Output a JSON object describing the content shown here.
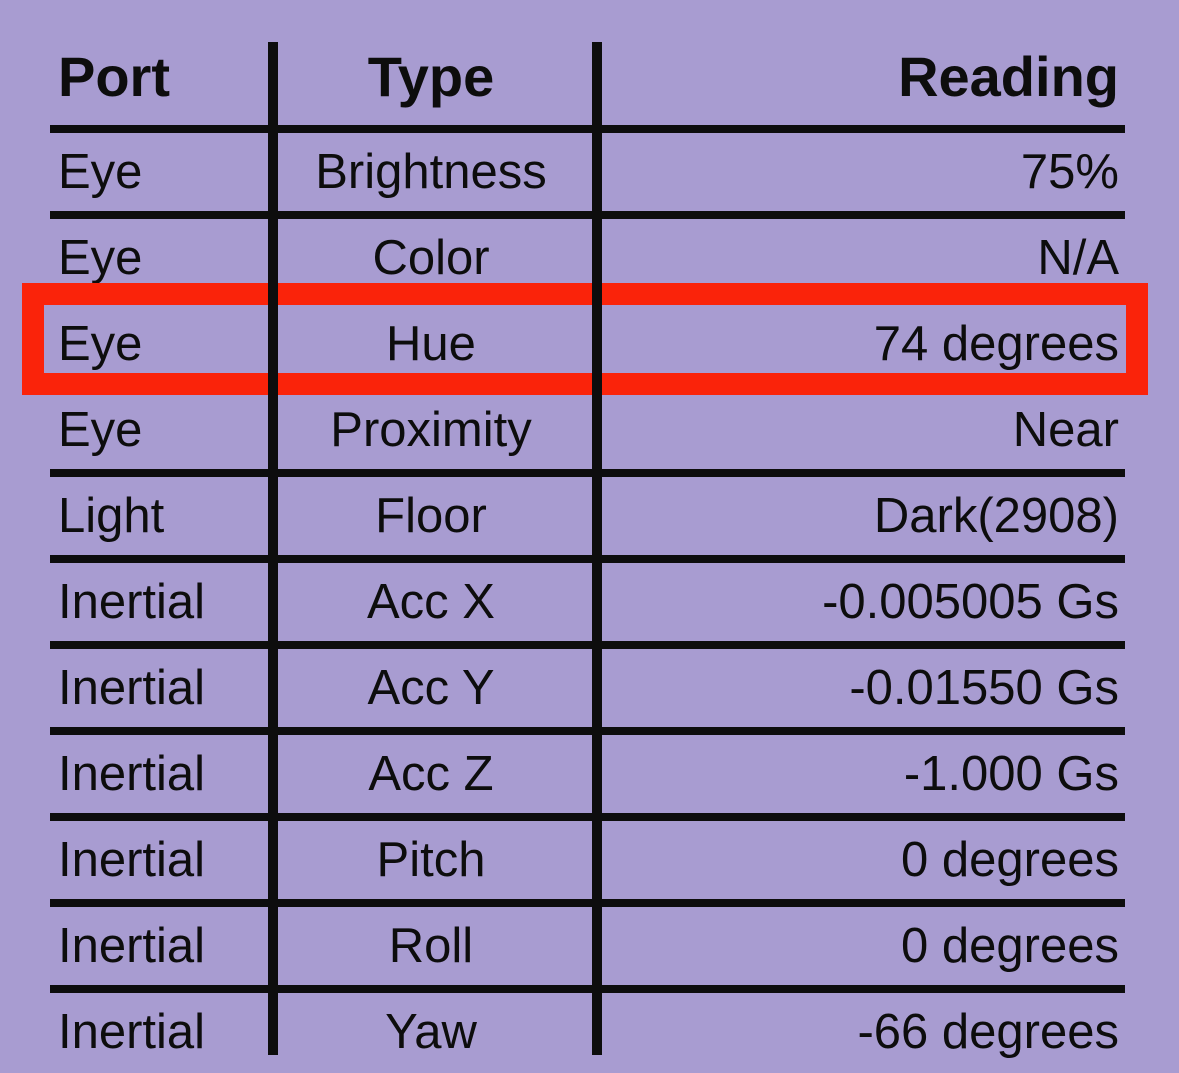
{
  "colors": {
    "background": "#a89cd1",
    "line": "#0d0d0d",
    "text": "#0d0d0d",
    "highlight": "#fa230a"
  },
  "table": {
    "columns": [
      {
        "label": "Port"
      },
      {
        "label": "Type"
      },
      {
        "label": "Reading"
      }
    ],
    "rows": [
      {
        "port": "Eye",
        "type": "Brightness",
        "reading": "75%"
      },
      {
        "port": "Eye",
        "type": "Color",
        "reading": "N/A"
      },
      {
        "port": "Eye",
        "type": "Hue",
        "reading": "74 degrees",
        "highlighted": true
      },
      {
        "port": "Eye",
        "type": "Proximity",
        "reading": "Near"
      },
      {
        "port": "Light",
        "type": "Floor",
        "reading": "Dark(2908)"
      },
      {
        "port": "Inertial",
        "type": "Acc X",
        "reading": "-0.005005 Gs"
      },
      {
        "port": "Inertial",
        "type": "Acc Y",
        "reading": "-0.01550 Gs"
      },
      {
        "port": "Inertial",
        "type": "Acc Z",
        "reading": "-1.000 Gs"
      },
      {
        "port": "Inertial",
        "type": "Pitch",
        "reading": "0 degrees"
      },
      {
        "port": "Inertial",
        "type": "Roll",
        "reading": "0 degrees"
      },
      {
        "port": "Inertial",
        "type": "Yaw",
        "reading": "-66 degrees"
      }
    ]
  }
}
